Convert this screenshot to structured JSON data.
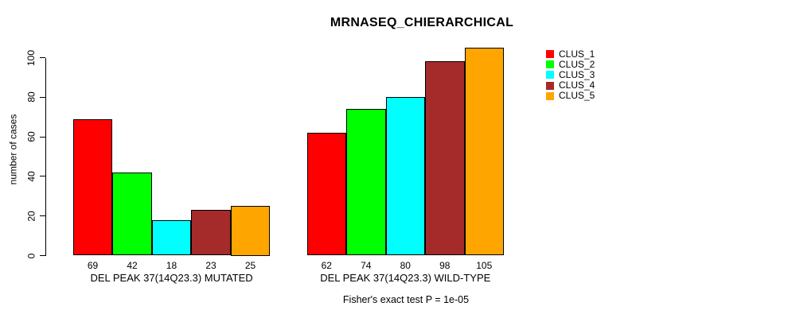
{
  "title": "MRNASEQ_CHIERARCHICAL",
  "y_axis": {
    "label": "number of cases",
    "ticks": [
      0,
      20,
      40,
      60,
      80,
      100
    ]
  },
  "footer": "Fisher's exact test P = 1e-05",
  "legend": {
    "items": [
      {
        "label": "CLUS_1",
        "color": "#ff0000"
      },
      {
        "label": "CLUS_2",
        "color": "#00ff00"
      },
      {
        "label": "CLUS_3",
        "color": "#00ffff"
      },
      {
        "label": "CLUS_4",
        "color": "#a52a2a"
      },
      {
        "label": "CLUS_5",
        "color": "#ffa500"
      }
    ]
  },
  "chart_data": {
    "type": "bar",
    "title": "MRNASEQ_CHIERARCHICAL",
    "xlabel": "",
    "ylabel": "number of cases",
    "ylim": [
      0,
      105
    ],
    "yticks": [
      0,
      20,
      40,
      60,
      80,
      100
    ],
    "grid": false,
    "legend_position": "right",
    "bar_border_color": "#000000",
    "series": [
      {
        "name": "CLUS_1",
        "color": "#ff0000",
        "values": [
          69,
          62
        ]
      },
      {
        "name": "CLUS_2",
        "color": "#00ff00",
        "values": [
          42,
          74
        ]
      },
      {
        "name": "CLUS_3",
        "color": "#00ffff",
        "values": [
          18,
          80
        ]
      },
      {
        "name": "CLUS_4",
        "color": "#a52a2a",
        "values": [
          23,
          98
        ]
      },
      {
        "name": "CLUS_5",
        "color": "#ffa500",
        "values": [
          25,
          105
        ]
      }
    ],
    "groups": [
      {
        "label": "DEL PEAK 37(14Q23.3) MUTATED",
        "values": [
          69,
          42,
          18,
          23,
          25
        ]
      },
      {
        "label": "DEL PEAK 37(14Q23.3) WILD-TYPE",
        "values": [
          62,
          74,
          80,
          98,
          105
        ]
      }
    ],
    "annotation": "Fisher's exact test P = 1e-05"
  }
}
